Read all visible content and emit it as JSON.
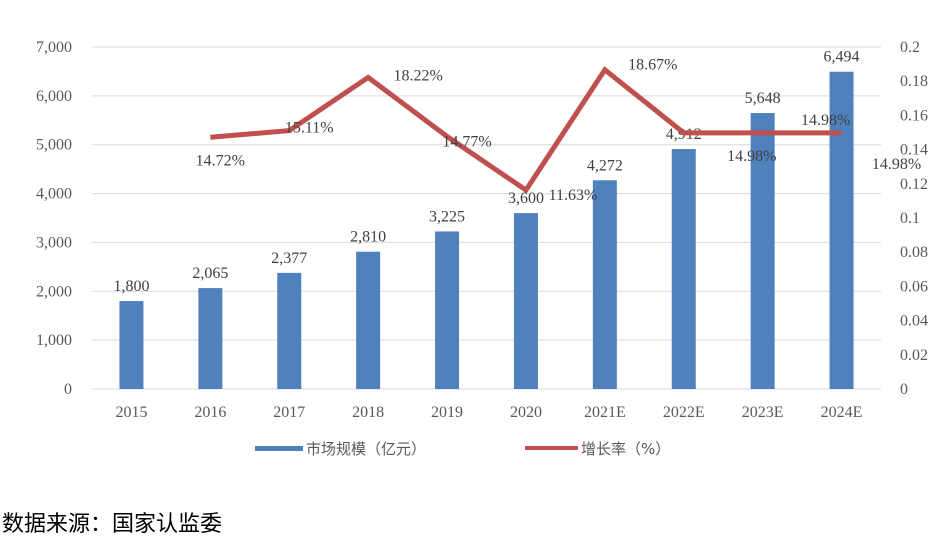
{
  "chart_data": {
    "type": "bar+line",
    "categories": [
      "2015",
      "2016",
      "2017",
      "2018",
      "2019",
      "2020",
      "2021E",
      "2022E",
      "2023E",
      "2024E"
    ],
    "series": [
      {
        "name": "市场规模（亿元）",
        "type": "bar",
        "axis": "left",
        "color": "#4f81bd",
        "values": [
          1800,
          2065,
          2377,
          2810,
          3225,
          3600,
          4272,
          4912,
          5648,
          6494
        ],
        "labels": [
          "1,800",
          "2,065",
          "2,377",
          "2,810",
          "3,225",
          "3,600",
          "4,272",
          "4,912",
          "5,648",
          "6,494"
        ]
      },
      {
        "name": "增长率（%）",
        "type": "line",
        "axis": "right",
        "color": "#c0504d",
        "values": [
          null,
          14.72,
          15.11,
          18.22,
          14.77,
          11.63,
          18.67,
          14.98,
          14.98,
          14.98
        ],
        "labels": [
          null,
          "14.72%",
          "15.11%",
          "18.22%",
          "14.77%",
          "11.63%",
          "18.67%",
          "14.98%",
          "14.98%",
          "14.98%"
        ]
      }
    ],
    "y_left": {
      "range": [
        0,
        7000
      ],
      "ticks": [
        "0",
        "1,000",
        "2,000",
        "3,000",
        "4,000",
        "5,000",
        "6,000",
        "7,000"
      ]
    },
    "y_right": {
      "range": [
        0,
        0.2
      ],
      "ticks": [
        "0",
        "0.02",
        "0.04",
        "0.06",
        "0.08",
        "0.1",
        "0.12",
        "0.14",
        "0.16",
        "0.18",
        "0.2"
      ]
    },
    "grid": true,
    "legend": "bottom"
  },
  "source": "数据来源：国家认监委"
}
